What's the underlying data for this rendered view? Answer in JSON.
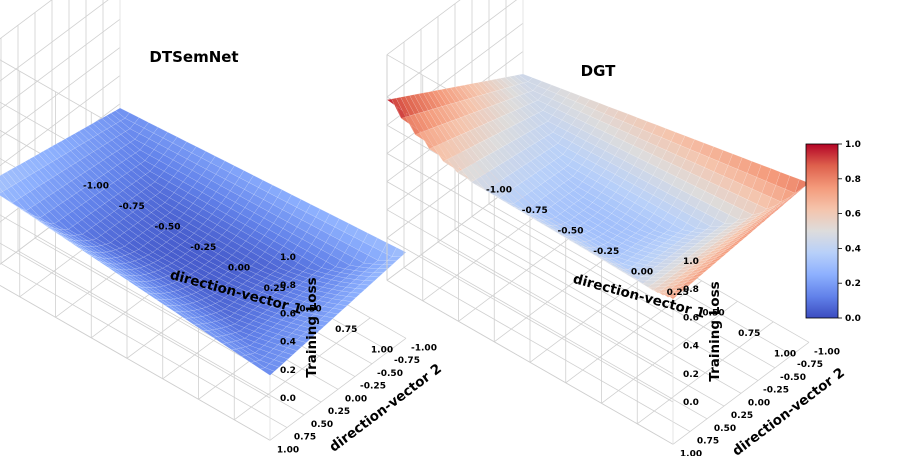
{
  "chart_data": [
    {
      "type": "surface3d",
      "title": "DTSemNet",
      "xlabel": "direction-vector 1",
      "ylabel": "direction-vector 2",
      "zlabel": "Training Loss",
      "xlim": [
        -1.0,
        1.0
      ],
      "ylim": [
        -1.0,
        1.0
      ],
      "zlim": [
        0.0,
        1.0
      ],
      "xticks": [
        "-1.00",
        "-0.75",
        "-0.50",
        "-0.25",
        "0.00",
        "0.25",
        "0.50",
        "0.75",
        "1.00"
      ],
      "yticks": [
        "-1.00",
        "-0.75",
        "-0.50",
        "-0.25",
        "0.00",
        "0.25",
        "0.50",
        "0.75",
        "1.00"
      ],
      "zticks": [
        "0.0",
        "0.2",
        "0.4",
        "0.6",
        "0.8",
        "1.0"
      ],
      "colormap": "coolwarm",
      "grid": true,
      "corner_values": {
        "x-1_y-1": 0.17,
        "x1_y-1": 0.31,
        "x-1_y1": 0.35,
        "x1_y1": 0.16
      },
      "center_value": 0.04
    },
    {
      "type": "surface3d",
      "title": "DGT",
      "xlabel": "direction-vector 1",
      "ylabel": "direction-vector 2",
      "zlabel": "Training Loss",
      "xlim": [
        -1.0,
        1.0
      ],
      "ylim": [
        -1.0,
        1.0
      ],
      "zlim": [
        0.0,
        1.0
      ],
      "xticks": [
        "-1.00",
        "-0.75",
        "-0.50",
        "-0.25",
        "0.00",
        "0.25",
        "0.50",
        "0.75",
        "1.00"
      ],
      "yticks": [
        "-1.00",
        "-0.75",
        "-0.50",
        "-0.25",
        "0.00",
        "0.25",
        "0.50",
        "0.75",
        "1.00"
      ],
      "zticks": [
        "0.0",
        "0.2",
        "0.4",
        "0.6",
        "0.8",
        "1.0"
      ],
      "colormap": "coolwarm",
      "grid": true,
      "corner_values": {
        "x-1_y-1": 0.44,
        "x1_y-1": 0.83,
        "x-1_y1": 0.98,
        "x1_y1": 0.73
      },
      "center_value": 0.31
    }
  ],
  "colorbar": {
    "ticks": [
      "0.0",
      "0.2",
      "0.4",
      "0.6",
      "0.8",
      "1.0"
    ],
    "range": [
      0.0,
      1.0
    ],
    "colormap": "coolwarm"
  },
  "colors": {
    "cold": "#3b4cc0",
    "neutral": "#dddddd",
    "warm": "#b40426",
    "grid": "#cfcfcf",
    "pane": "#ffffff"
  }
}
